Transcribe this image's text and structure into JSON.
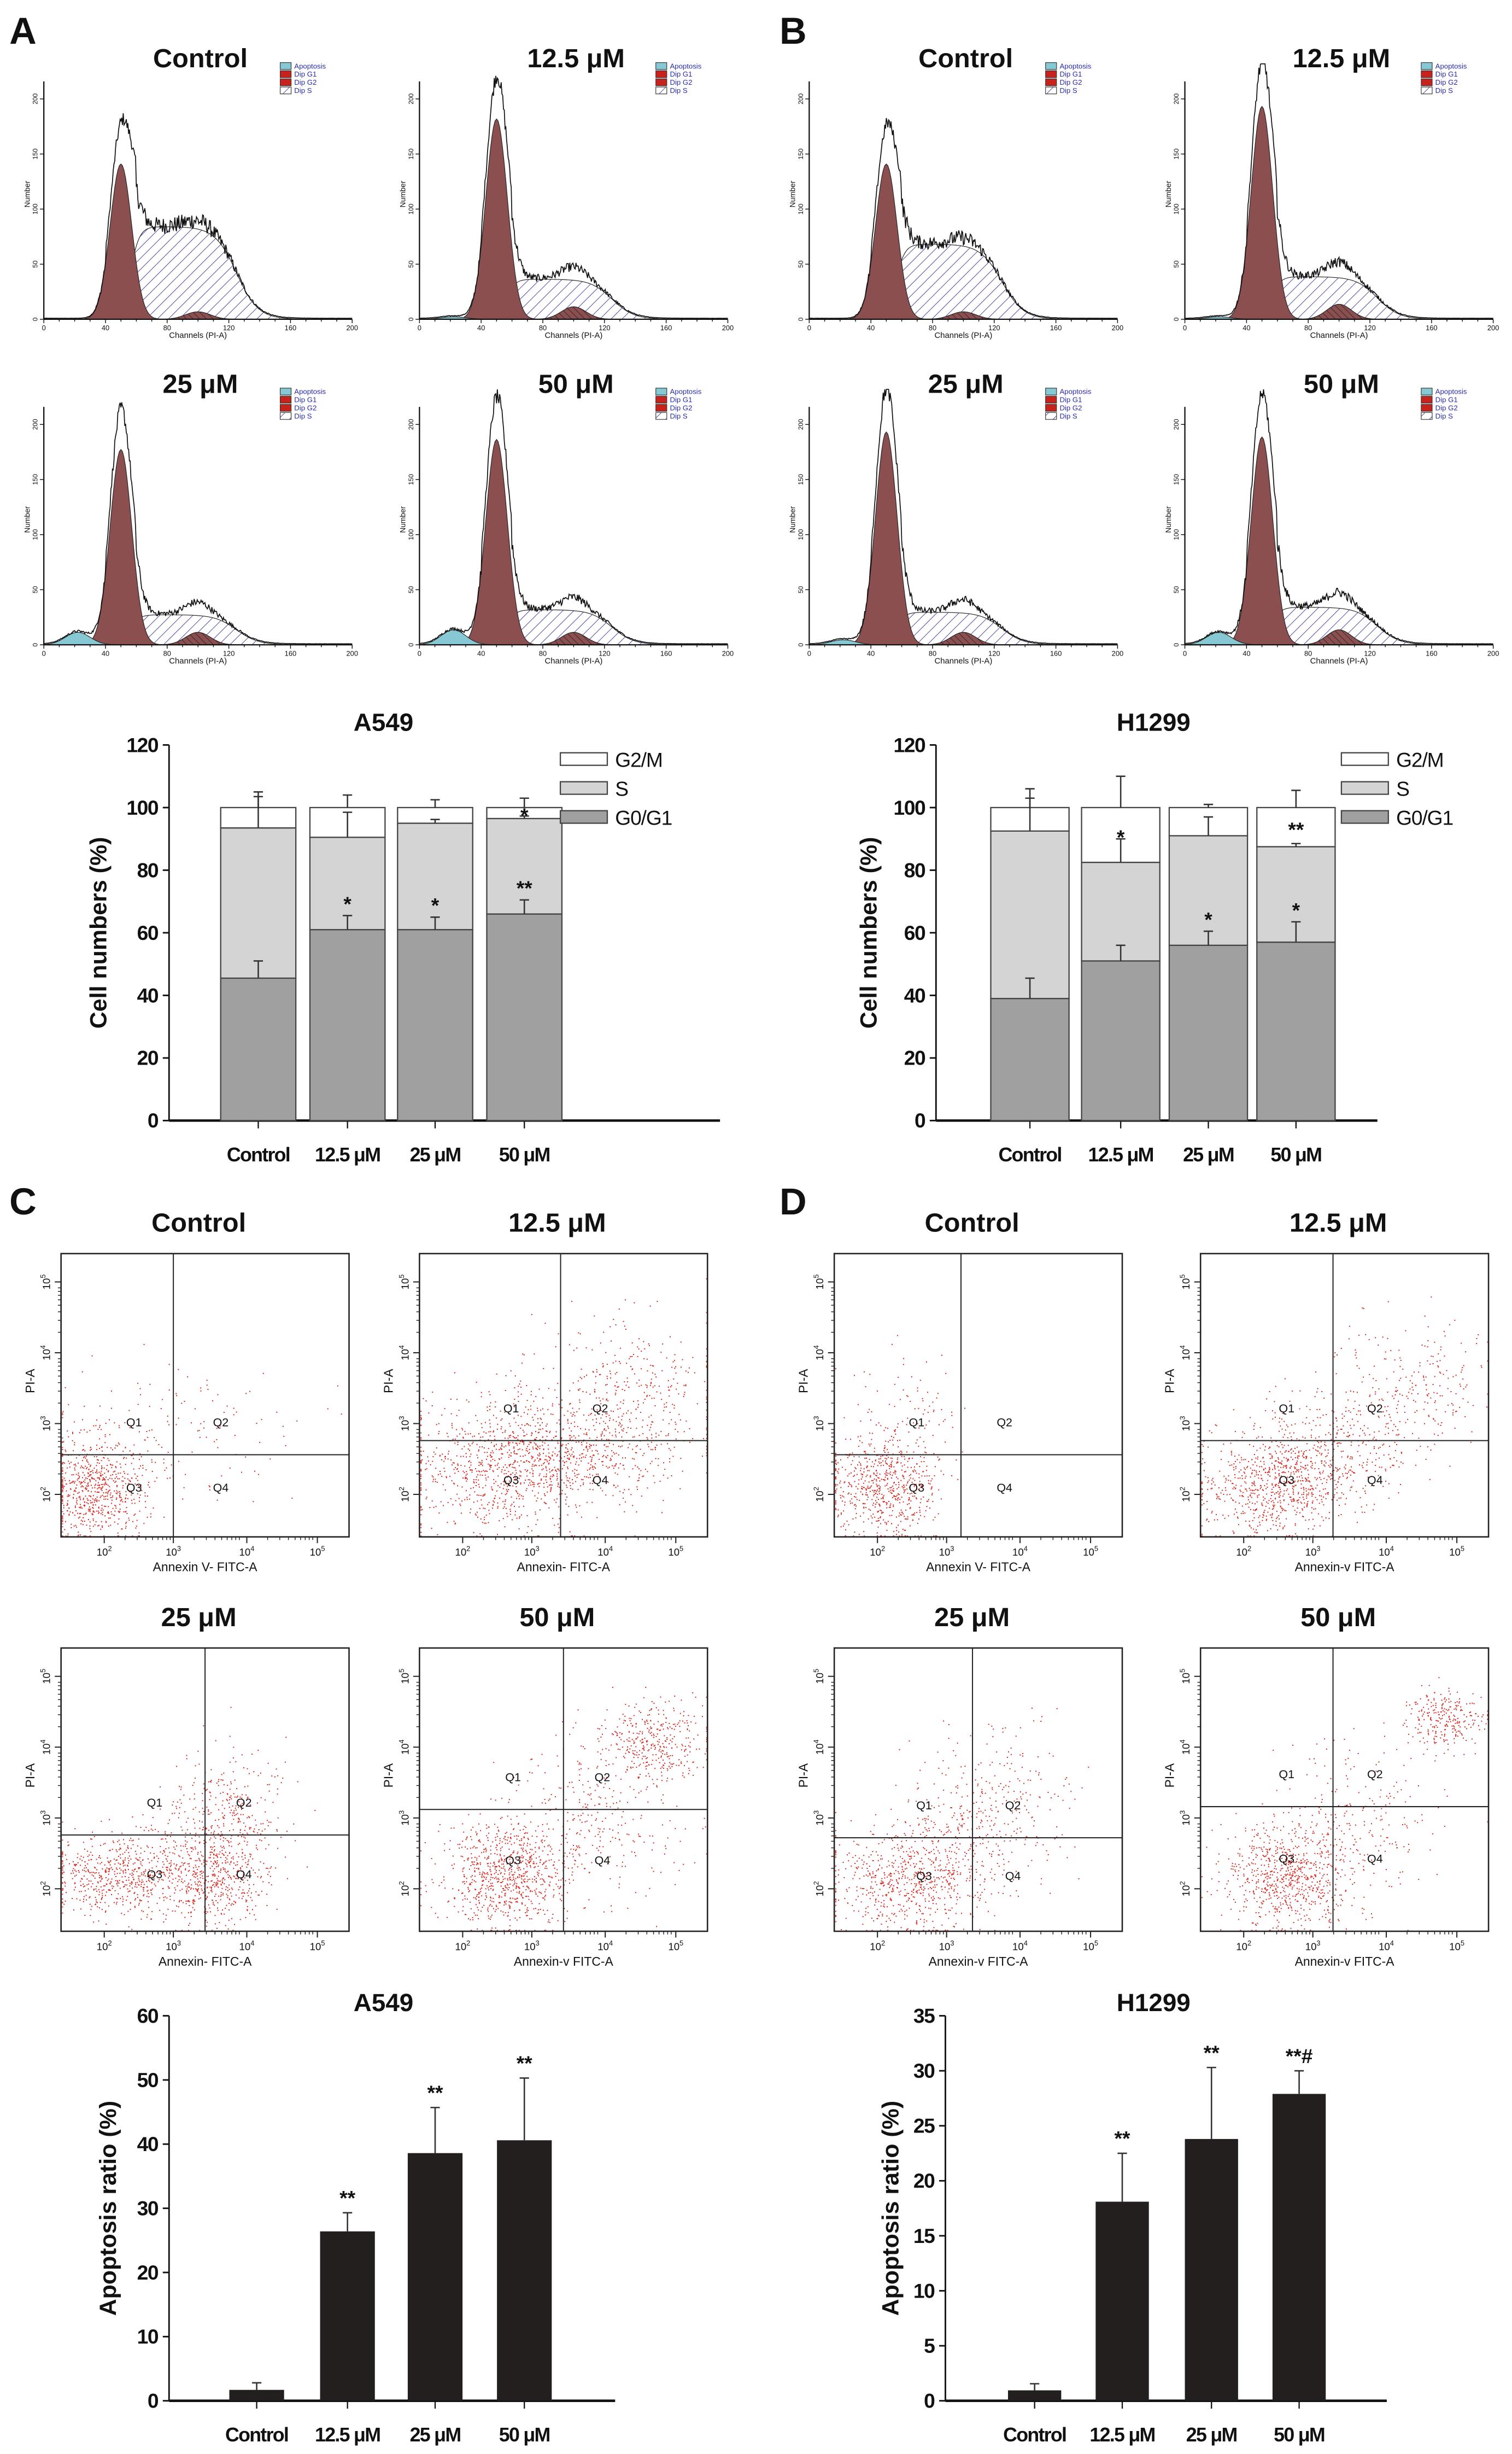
{
  "panel_labels": [
    "A",
    "B",
    "C",
    "D"
  ],
  "colors": {
    "g1_peak": "#8c4f50",
    "s_hatch": "#3a3aa0",
    "apoptosis_fill": "#86c8d4",
    "dip_red": "#c8221c",
    "scatter_dot": "#d42a20",
    "g0g1_bar": "#a0a0a0",
    "s_bar": "#d4d4d4",
    "g2m_bar": "#ffffff",
    "apoptosis_bar": "#231f1e",
    "legend_text": "#2b2bb0"
  },
  "histograms": {
    "legend": [
      "Apoptosis",
      "Dip G1",
      "Dip G2",
      "Dip S"
    ],
    "x_label": "Channels (PI-A)",
    "y_label": "Number",
    "x_ticks": [
      0,
      40,
      80,
      120,
      160,
      200
    ],
    "y_ticks": [
      0,
      50,
      100,
      150,
      200
    ],
    "panels": [
      {
        "group": "A",
        "title": "Control"
      },
      {
        "group": "A",
        "title": "12.5 μM"
      },
      {
        "group": "A",
        "title": "25 μM"
      },
      {
        "group": "A",
        "title": "50 μM"
      },
      {
        "group": "B",
        "title": "Control"
      },
      {
        "group": "B",
        "title": "12.5 μM"
      },
      {
        "group": "B",
        "title": "25 μM"
      },
      {
        "group": "B",
        "title": "50 μM"
      }
    ]
  },
  "scatter": {
    "y_label": "PI-A",
    "tick_base": "10",
    "tick_exponents": [
      2,
      3,
      4,
      5
    ],
    "quadrants": [
      "Q1",
      "Q2",
      "Q3",
      "Q4"
    ],
    "panels": [
      {
        "group": "C",
        "title": "Control",
        "x_label": "Annexin V- FITC-A"
      },
      {
        "group": "C",
        "title": "12.5 μM",
        "x_label": "Annexin- FITC-A"
      },
      {
        "group": "C",
        "title": "25 μM",
        "x_label": "Annexin- FITC-A"
      },
      {
        "group": "C",
        "title": "50 μM",
        "x_label": "Annexin-v FITC-A"
      },
      {
        "group": "D",
        "title": "Control",
        "x_label": "Annexin V- FITC-A"
      },
      {
        "group": "D",
        "title": "12.5 μM",
        "x_label": "Annexin-v FITC-A"
      },
      {
        "group": "D",
        "title": "25 μM",
        "x_label": "Annexin-v FITC-A"
      },
      {
        "group": "D",
        "title": "50 μM",
        "x_label": "Annexin-v FITC-A"
      }
    ]
  },
  "chart_data": [
    {
      "type": "bar",
      "stacked": true,
      "title": "A549",
      "xlabel": "",
      "ylabel": "Cell numbers (%)",
      "ylim": [
        0,
        120
      ],
      "yticks": [
        0,
        20,
        40,
        60,
        80,
        100,
        120
      ],
      "categories": [
        "Control",
        "12.5 μM",
        "25 μM",
        "50 μM"
      ],
      "legend": "top-right",
      "series": [
        {
          "name": "G0/G1",
          "values": [
            45.5,
            61,
            61,
            66
          ],
          "errors": [
            5.5,
            4.5,
            4,
            4.5
          ],
          "significance": [
            "",
            "*",
            "*",
            "**"
          ]
        },
        {
          "name": "S",
          "values": [
            48,
            29.5,
            34,
            30.5
          ],
          "errors": [
            10,
            8,
            1.2,
            0.8
          ],
          "significance": [
            "",
            "",
            "",
            ""
          ]
        },
        {
          "name": "G2/M",
          "values": [
            6.5,
            9.5,
            5,
            3.5
          ],
          "errors": [
            5,
            4,
            2.5,
            3
          ],
          "significance": [
            "",
            "",
            "",
            "*"
          ]
        }
      ]
    },
    {
      "type": "bar",
      "stacked": true,
      "title": "H1299",
      "xlabel": "",
      "ylabel": "Cell numbers (%)",
      "ylim": [
        0,
        120
      ],
      "yticks": [
        0,
        20,
        40,
        60,
        80,
        100,
        120
      ],
      "categories": [
        "Control",
        "12.5 μM",
        "25 μM",
        "50 μM"
      ],
      "legend": "top-right",
      "series": [
        {
          "name": "G0/G1",
          "values": [
            39,
            51,
            56,
            57
          ],
          "errors": [
            6.5,
            5,
            4.5,
            6.5
          ],
          "significance": [
            "",
            "",
            "*",
            "*"
          ]
        },
        {
          "name": "S",
          "values": [
            53.5,
            31.5,
            35,
            30.5
          ],
          "errors": [
            10.5,
            7.5,
            6,
            1
          ],
          "significance": [
            "",
            "",
            "",
            ""
          ]
        },
        {
          "name": "G2/M",
          "values": [
            7.5,
            17.5,
            9,
            12.5
          ],
          "errors": [
            6,
            10,
            1,
            5.5
          ],
          "significance": [
            "",
            "*",
            "",
            "**"
          ]
        }
      ]
    },
    {
      "type": "bar",
      "title": "A549",
      "xlabel": "",
      "ylabel": "Apoptosis ratio (%)",
      "ylim": [
        0,
        60
      ],
      "yticks": [
        0,
        10,
        20,
        30,
        40,
        50,
        60
      ],
      "categories": [
        "Control",
        "12.5 μM",
        "25 μM",
        "50 μM"
      ],
      "values": [
        1.7,
        26.4,
        38.6,
        40.6
      ],
      "errors": [
        1.1,
        2.9,
        7.1,
        9.7
      ],
      "significance": [
        "",
        "**",
        "**",
        "**"
      ]
    },
    {
      "type": "bar",
      "title": "H1299",
      "xlabel": "",
      "ylabel": "Apoptosis ratio (%)",
      "ylim": [
        0,
        35
      ],
      "yticks": [
        0,
        5,
        10,
        15,
        20,
        25,
        30,
        35
      ],
      "categories": [
        "Control",
        "12.5 μM",
        "25 μM",
        "50 μM"
      ],
      "values": [
        0.95,
        18.1,
        23.8,
        27.9
      ],
      "errors": [
        0.6,
        4.4,
        6.5,
        2.1
      ],
      "significance": [
        "",
        "**",
        "**",
        "**#"
      ]
    }
  ]
}
